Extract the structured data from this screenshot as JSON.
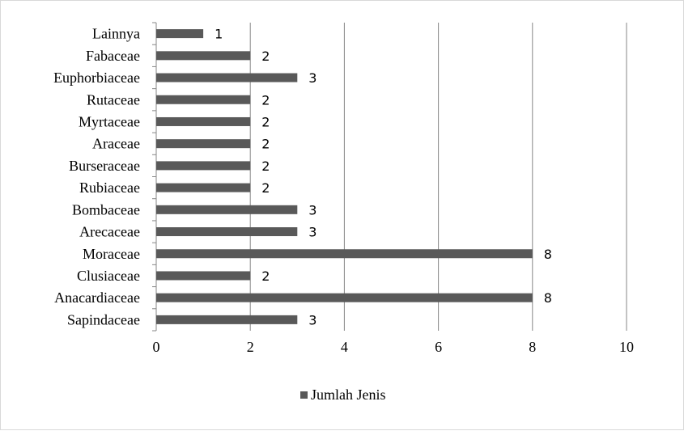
{
  "chart_data": {
    "type": "bar",
    "orientation": "horizontal",
    "categories": [
      "Sapindaceae",
      "Anacardiaceae",
      "Clusiaceae",
      "Moraceae",
      "Arecaceae",
      "Bombaceae",
      "Rubiaceae",
      "Burseraceae",
      "Araceae",
      "Myrtaceae",
      "Rutaceae",
      "Euphorbiaceae",
      "Fabaceae",
      "Lainnya"
    ],
    "series": [
      {
        "name": "Jumlah Jenis",
        "values": [
          3,
          8,
          2,
          8,
          3,
          3,
          2,
          2,
          2,
          2,
          2,
          3,
          2,
          1
        ],
        "color": "#595959"
      }
    ],
    "xlim": [
      0,
      10
    ],
    "xticks": [
      "0",
      "2",
      "4",
      "6",
      "8",
      "10"
    ],
    "grid": "vertical",
    "legend_position": "bottom",
    "data_labels": true,
    "title": "",
    "xlabel": "",
    "ylabel": ""
  }
}
